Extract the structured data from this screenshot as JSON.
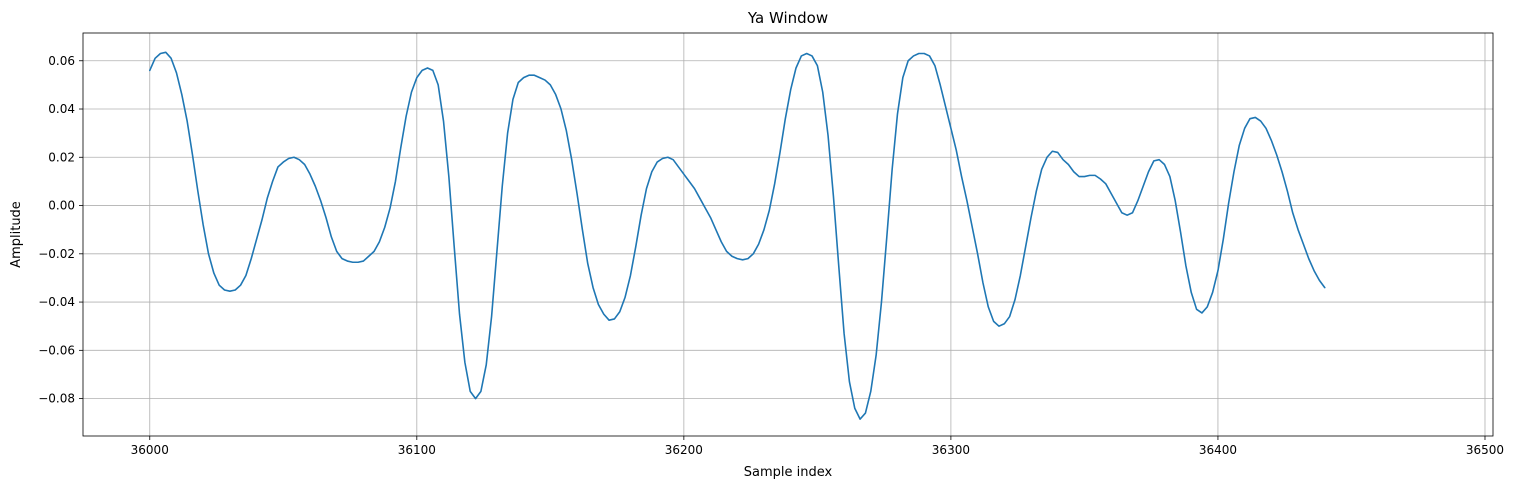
{
  "chart_data": {
    "type": "line",
    "title": "Ya Window",
    "xlabel": "Sample index",
    "ylabel": "Amplitude",
    "xlim": [
      35975,
      36503
    ],
    "ylim": [
      -0.0955,
      0.0715
    ],
    "grid": true,
    "xticks": [
      36000,
      36100,
      36200,
      36300,
      36400,
      36500
    ],
    "yticks": [
      -0.08,
      -0.06,
      -0.04,
      -0.02,
      0.0,
      0.02,
      0.04,
      0.06
    ],
    "xtick_labels": [
      "36000",
      "36100",
      "36200",
      "36300",
      "36400",
      "36500"
    ],
    "ytick_labels": [
      "−0.08",
      "−0.06",
      "−0.04",
      "−0.02",
      "0.00",
      "0.02",
      "0.04",
      "0.06"
    ],
    "series": [
      {
        "color": "#1f77b4",
        "points": [
          [
            36000,
            0.056
          ],
          [
            36002,
            0.061
          ],
          [
            36004,
            0.063
          ],
          [
            36006,
            0.0635
          ],
          [
            36008,
            0.061
          ],
          [
            36010,
            0.055
          ],
          [
            36012,
            0.046
          ],
          [
            36014,
            0.035
          ],
          [
            36016,
            0.021
          ],
          [
            36018,
            0.006
          ],
          [
            36020,
            -0.008
          ],
          [
            36022,
            -0.02
          ],
          [
            36024,
            -0.028
          ],
          [
            36026,
            -0.033
          ],
          [
            36028,
            -0.035
          ],
          [
            36030,
            -0.0355
          ],
          [
            36032,
            -0.035
          ],
          [
            36034,
            -0.033
          ],
          [
            36036,
            -0.029
          ],
          [
            36038,
            -0.022
          ],
          [
            36040,
            -0.014
          ],
          [
            36042,
            -0.006
          ],
          [
            36044,
            0.003
          ],
          [
            36046,
            0.01
          ],
          [
            36048,
            0.016
          ],
          [
            36050,
            0.018
          ],
          [
            36052,
            0.0195
          ],
          [
            36054,
            0.02
          ],
          [
            36056,
            0.019
          ],
          [
            36058,
            0.017
          ],
          [
            36060,
            0.013
          ],
          [
            36062,
            0.008
          ],
          [
            36064,
            0.002
          ],
          [
            36066,
            -0.005
          ],
          [
            36068,
            -0.013
          ],
          [
            36070,
            -0.019
          ],
          [
            36072,
            -0.022
          ],
          [
            36074,
            -0.023
          ],
          [
            36076,
            -0.0235
          ],
          [
            36078,
            -0.0235
          ],
          [
            36080,
            -0.023
          ],
          [
            36082,
            -0.021
          ],
          [
            36084,
            -0.019
          ],
          [
            36086,
            -0.015
          ],
          [
            36088,
            -0.009
          ],
          [
            36090,
            -0.001
          ],
          [
            36092,
            0.01
          ],
          [
            36094,
            0.024
          ],
          [
            36096,
            0.037
          ],
          [
            36098,
            0.047
          ],
          [
            36100,
            0.053
          ],
          [
            36102,
            0.056
          ],
          [
            36104,
            0.057
          ],
          [
            36106,
            0.056
          ],
          [
            36108,
            0.05
          ],
          [
            36110,
            0.035
          ],
          [
            36112,
            0.012
          ],
          [
            36114,
            -0.017
          ],
          [
            36116,
            -0.045
          ],
          [
            36118,
            -0.065
          ],
          [
            36120,
            -0.077
          ],
          [
            36122,
            -0.08
          ],
          [
            36124,
            -0.077
          ],
          [
            36126,
            -0.066
          ],
          [
            36128,
            -0.046
          ],
          [
            36130,
            -0.019
          ],
          [
            36132,
            0.008
          ],
          [
            36134,
            0.03
          ],
          [
            36136,
            0.044
          ],
          [
            36138,
            0.051
          ],
          [
            36140,
            0.053
          ],
          [
            36142,
            0.054
          ],
          [
            36144,
            0.054
          ],
          [
            36146,
            0.053
          ],
          [
            36148,
            0.052
          ],
          [
            36150,
            0.05
          ],
          [
            36152,
            0.046
          ],
          [
            36154,
            0.04
          ],
          [
            36156,
            0.031
          ],
          [
            36158,
            0.019
          ],
          [
            36160,
            0.005
          ],
          [
            36162,
            -0.01
          ],
          [
            36164,
            -0.024
          ],
          [
            36166,
            -0.034
          ],
          [
            36168,
            -0.041
          ],
          [
            36170,
            -0.045
          ],
          [
            36172,
            -0.0475
          ],
          [
            36174,
            -0.047
          ],
          [
            36176,
            -0.044
          ],
          [
            36178,
            -0.038
          ],
          [
            36180,
            -0.029
          ],
          [
            36182,
            -0.017
          ],
          [
            36184,
            -0.004
          ],
          [
            36186,
            0.007
          ],
          [
            36188,
            0.014
          ],
          [
            36190,
            0.018
          ],
          [
            36192,
            0.0195
          ],
          [
            36194,
            0.02
          ],
          [
            36196,
            0.019
          ],
          [
            36198,
            0.016
          ],
          [
            36200,
            0.013
          ],
          [
            36202,
            0.01
          ],
          [
            36204,
            0.007
          ],
          [
            36206,
            0.003
          ],
          [
            36208,
            -0.001
          ],
          [
            36210,
            -0.005
          ],
          [
            36212,
            -0.01
          ],
          [
            36214,
            -0.015
          ],
          [
            36216,
            -0.019
          ],
          [
            36218,
            -0.021
          ],
          [
            36220,
            -0.022
          ],
          [
            36222,
            -0.0225
          ],
          [
            36224,
            -0.022
          ],
          [
            36226,
            -0.02
          ],
          [
            36228,
            -0.016
          ],
          [
            36230,
            -0.01
          ],
          [
            36232,
            -0.002
          ],
          [
            36234,
            0.009
          ],
          [
            36236,
            0.022
          ],
          [
            36238,
            0.036
          ],
          [
            36240,
            0.048
          ],
          [
            36242,
            0.057
          ],
          [
            36244,
            0.062
          ],
          [
            36246,
            0.063
          ],
          [
            36248,
            0.062
          ],
          [
            36250,
            0.058
          ],
          [
            36252,
            0.047
          ],
          [
            36254,
            0.029
          ],
          [
            36256,
            0.004
          ],
          [
            36258,
            -0.025
          ],
          [
            36260,
            -0.053
          ],
          [
            36262,
            -0.073
          ],
          [
            36264,
            -0.084
          ],
          [
            36266,
            -0.0885
          ],
          [
            36268,
            -0.086
          ],
          [
            36270,
            -0.077
          ],
          [
            36272,
            -0.062
          ],
          [
            36274,
            -0.04
          ],
          [
            36276,
            -0.013
          ],
          [
            36278,
            0.015
          ],
          [
            36280,
            0.038
          ],
          [
            36282,
            0.053
          ],
          [
            36284,
            0.06
          ],
          [
            36286,
            0.062
          ],
          [
            36288,
            0.063
          ],
          [
            36290,
            0.063
          ],
          [
            36292,
            0.062
          ],
          [
            36294,
            0.058
          ],
          [
            36296,
            0.05
          ],
          [
            36298,
            0.041
          ],
          [
            36300,
            0.032
          ],
          [
            36302,
            0.023
          ],
          [
            36304,
            0.012
          ],
          [
            36306,
            0.002
          ],
          [
            36308,
            -0.009
          ],
          [
            36310,
            -0.02
          ],
          [
            36312,
            -0.032
          ],
          [
            36314,
            -0.042
          ],
          [
            36316,
            -0.048
          ],
          [
            36318,
            -0.05
          ],
          [
            36320,
            -0.049
          ],
          [
            36322,
            -0.046
          ],
          [
            36324,
            -0.039
          ],
          [
            36326,
            -0.029
          ],
          [
            36328,
            -0.017
          ],
          [
            36330,
            -0.005
          ],
          [
            36332,
            0.006
          ],
          [
            36334,
            0.015
          ],
          [
            36336,
            0.02
          ],
          [
            36338,
            0.0225
          ],
          [
            36340,
            0.022
          ],
          [
            36342,
            0.019
          ],
          [
            36344,
            0.017
          ],
          [
            36346,
            0.014
          ],
          [
            36348,
            0.012
          ],
          [
            36350,
            0.012
          ],
          [
            36352,
            0.0125
          ],
          [
            36354,
            0.0125
          ],
          [
            36356,
            0.011
          ],
          [
            36358,
            0.009
          ],
          [
            36360,
            0.005
          ],
          [
            36362,
            0.001
          ],
          [
            36364,
            -0.003
          ],
          [
            36366,
            -0.004
          ],
          [
            36368,
            -0.003
          ],
          [
            36370,
            0.002
          ],
          [
            36372,
            0.008
          ],
          [
            36374,
            0.014
          ],
          [
            36376,
            0.0185
          ],
          [
            36378,
            0.019
          ],
          [
            36380,
            0.017
          ],
          [
            36382,
            0.012
          ],
          [
            36384,
            0.002
          ],
          [
            36386,
            -0.011
          ],
          [
            36388,
            -0.025
          ],
          [
            36390,
            -0.036
          ],
          [
            36392,
            -0.043
          ],
          [
            36394,
            -0.0445
          ],
          [
            36396,
            -0.042
          ],
          [
            36398,
            -0.036
          ],
          [
            36400,
            -0.027
          ],
          [
            36402,
            -0.014
          ],
          [
            36404,
            0.001
          ],
          [
            36406,
            0.014
          ],
          [
            36408,
            0.025
          ],
          [
            36410,
            0.032
          ],
          [
            36412,
            0.036
          ],
          [
            36414,
            0.0365
          ],
          [
            36416,
            0.035
          ],
          [
            36418,
            0.032
          ],
          [
            36420,
            0.027
          ],
          [
            36422,
            0.021
          ],
          [
            36424,
            0.014
          ],
          [
            36426,
            0.006
          ],
          [
            36428,
            -0.003
          ],
          [
            36430,
            -0.01
          ],
          [
            36432,
            -0.016
          ],
          [
            36434,
            -0.022
          ],
          [
            36436,
            -0.027
          ],
          [
            36438,
            -0.031
          ],
          [
            36440,
            -0.034
          ]
        ]
      }
    ]
  }
}
